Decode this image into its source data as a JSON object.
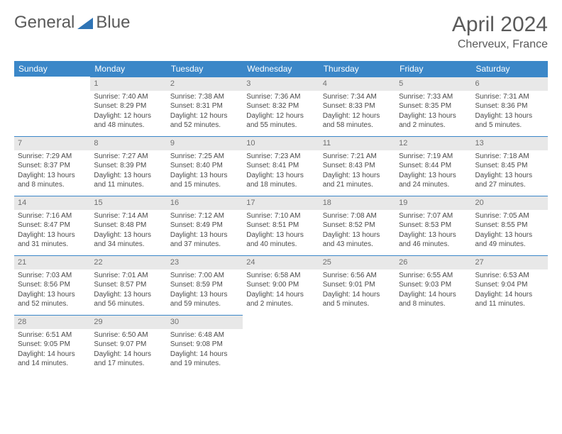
{
  "logo": {
    "text1": "General",
    "text2": "Blue",
    "triangle_color": "#2f74b5"
  },
  "title": "April 2024",
  "location": "Cherveux, France",
  "colors": {
    "header_bg": "#3b87c8",
    "header_fg": "#ffffff",
    "daynum_bg": "#e8e8e8",
    "daynum_fg": "#707070",
    "rule": "#3b87c8",
    "text": "#4a4a4a"
  },
  "weekdays": [
    "Sunday",
    "Monday",
    "Tuesday",
    "Wednesday",
    "Thursday",
    "Friday",
    "Saturday"
  ],
  "grid": [
    [
      null,
      {
        "n": "1",
        "l1": "Sunrise: 7:40 AM",
        "l2": "Sunset: 8:29 PM",
        "l3": "Daylight: 12 hours and 48 minutes."
      },
      {
        "n": "2",
        "l1": "Sunrise: 7:38 AM",
        "l2": "Sunset: 8:31 PM",
        "l3": "Daylight: 12 hours and 52 minutes."
      },
      {
        "n": "3",
        "l1": "Sunrise: 7:36 AM",
        "l2": "Sunset: 8:32 PM",
        "l3": "Daylight: 12 hours and 55 minutes."
      },
      {
        "n": "4",
        "l1": "Sunrise: 7:34 AM",
        "l2": "Sunset: 8:33 PM",
        "l3": "Daylight: 12 hours and 58 minutes."
      },
      {
        "n": "5",
        "l1": "Sunrise: 7:33 AM",
        "l2": "Sunset: 8:35 PM",
        "l3": "Daylight: 13 hours and 2 minutes."
      },
      {
        "n": "6",
        "l1": "Sunrise: 7:31 AM",
        "l2": "Sunset: 8:36 PM",
        "l3": "Daylight: 13 hours and 5 minutes."
      }
    ],
    [
      {
        "n": "7",
        "l1": "Sunrise: 7:29 AM",
        "l2": "Sunset: 8:37 PM",
        "l3": "Daylight: 13 hours and 8 minutes."
      },
      {
        "n": "8",
        "l1": "Sunrise: 7:27 AM",
        "l2": "Sunset: 8:39 PM",
        "l3": "Daylight: 13 hours and 11 minutes."
      },
      {
        "n": "9",
        "l1": "Sunrise: 7:25 AM",
        "l2": "Sunset: 8:40 PM",
        "l3": "Daylight: 13 hours and 15 minutes."
      },
      {
        "n": "10",
        "l1": "Sunrise: 7:23 AM",
        "l2": "Sunset: 8:41 PM",
        "l3": "Daylight: 13 hours and 18 minutes."
      },
      {
        "n": "11",
        "l1": "Sunrise: 7:21 AM",
        "l2": "Sunset: 8:43 PM",
        "l3": "Daylight: 13 hours and 21 minutes."
      },
      {
        "n": "12",
        "l1": "Sunrise: 7:19 AM",
        "l2": "Sunset: 8:44 PM",
        "l3": "Daylight: 13 hours and 24 minutes."
      },
      {
        "n": "13",
        "l1": "Sunrise: 7:18 AM",
        "l2": "Sunset: 8:45 PM",
        "l3": "Daylight: 13 hours and 27 minutes."
      }
    ],
    [
      {
        "n": "14",
        "l1": "Sunrise: 7:16 AM",
        "l2": "Sunset: 8:47 PM",
        "l3": "Daylight: 13 hours and 31 minutes."
      },
      {
        "n": "15",
        "l1": "Sunrise: 7:14 AM",
        "l2": "Sunset: 8:48 PM",
        "l3": "Daylight: 13 hours and 34 minutes."
      },
      {
        "n": "16",
        "l1": "Sunrise: 7:12 AM",
        "l2": "Sunset: 8:49 PM",
        "l3": "Daylight: 13 hours and 37 minutes."
      },
      {
        "n": "17",
        "l1": "Sunrise: 7:10 AM",
        "l2": "Sunset: 8:51 PM",
        "l3": "Daylight: 13 hours and 40 minutes."
      },
      {
        "n": "18",
        "l1": "Sunrise: 7:08 AM",
        "l2": "Sunset: 8:52 PM",
        "l3": "Daylight: 13 hours and 43 minutes."
      },
      {
        "n": "19",
        "l1": "Sunrise: 7:07 AM",
        "l2": "Sunset: 8:53 PM",
        "l3": "Daylight: 13 hours and 46 minutes."
      },
      {
        "n": "20",
        "l1": "Sunrise: 7:05 AM",
        "l2": "Sunset: 8:55 PM",
        "l3": "Daylight: 13 hours and 49 minutes."
      }
    ],
    [
      {
        "n": "21",
        "l1": "Sunrise: 7:03 AM",
        "l2": "Sunset: 8:56 PM",
        "l3": "Daylight: 13 hours and 52 minutes."
      },
      {
        "n": "22",
        "l1": "Sunrise: 7:01 AM",
        "l2": "Sunset: 8:57 PM",
        "l3": "Daylight: 13 hours and 56 minutes."
      },
      {
        "n": "23",
        "l1": "Sunrise: 7:00 AM",
        "l2": "Sunset: 8:59 PM",
        "l3": "Daylight: 13 hours and 59 minutes."
      },
      {
        "n": "24",
        "l1": "Sunrise: 6:58 AM",
        "l2": "Sunset: 9:00 PM",
        "l3": "Daylight: 14 hours and 2 minutes."
      },
      {
        "n": "25",
        "l1": "Sunrise: 6:56 AM",
        "l2": "Sunset: 9:01 PM",
        "l3": "Daylight: 14 hours and 5 minutes."
      },
      {
        "n": "26",
        "l1": "Sunrise: 6:55 AM",
        "l2": "Sunset: 9:03 PM",
        "l3": "Daylight: 14 hours and 8 minutes."
      },
      {
        "n": "27",
        "l1": "Sunrise: 6:53 AM",
        "l2": "Sunset: 9:04 PM",
        "l3": "Daylight: 14 hours and 11 minutes."
      }
    ],
    [
      {
        "n": "28",
        "l1": "Sunrise: 6:51 AM",
        "l2": "Sunset: 9:05 PM",
        "l3": "Daylight: 14 hours and 14 minutes."
      },
      {
        "n": "29",
        "l1": "Sunrise: 6:50 AM",
        "l2": "Sunset: 9:07 PM",
        "l3": "Daylight: 14 hours and 17 minutes."
      },
      {
        "n": "30",
        "l1": "Sunrise: 6:48 AM",
        "l2": "Sunset: 9:08 PM",
        "l3": "Daylight: 14 hours and 19 minutes."
      },
      null,
      null,
      null,
      null
    ]
  ]
}
